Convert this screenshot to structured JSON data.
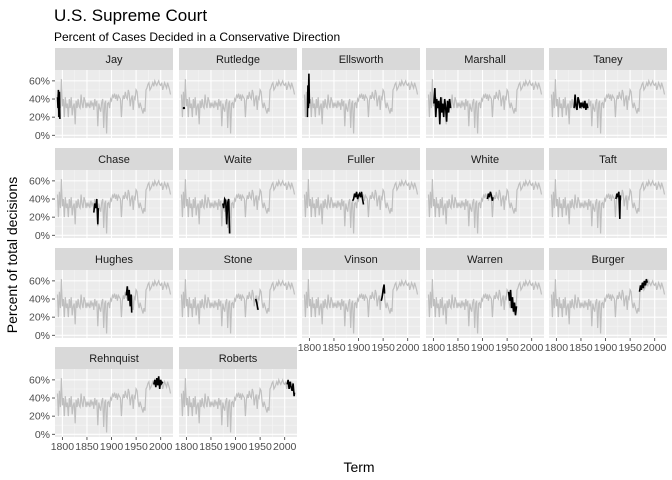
{
  "chart_data": {
    "type": "line",
    "title": "U.S. Supreme Court",
    "subtitle": "Percent of Cases Decided in a Conservative Direction",
    "xlabel": "Term",
    "ylabel": "Percent of total decisions",
    "xlim": [
      1785,
      2025
    ],
    "ylim": [
      -0.03,
      0.72
    ],
    "x_ticks": [
      1800,
      1850,
      1900,
      1950,
      2000
    ],
    "y_ticks": [
      0,
      0.2,
      0.4,
      0.6
    ],
    "y_tick_labels": [
      "0%",
      "20%",
      "40%",
      "60%"
    ],
    "background_series": {
      "x": [
        1790,
        1792,
        1794,
        1796,
        1798,
        1800,
        1802,
        1804,
        1806,
        1808,
        1810,
        1812,
        1814,
        1816,
        1818,
        1820,
        1822,
        1824,
        1826,
        1828,
        1830,
        1832,
        1834,
        1836,
        1838,
        1840,
        1842,
        1844,
        1846,
        1848,
        1850,
        1852,
        1854,
        1856,
        1858,
        1860,
        1862,
        1864,
        1866,
        1868,
        1870,
        1872,
        1874,
        1876,
        1878,
        1880,
        1882,
        1884,
        1886,
        1888,
        1890,
        1892,
        1894,
        1896,
        1898,
        1900,
        1902,
        1904,
        1906,
        1908,
        1910,
        1912,
        1914,
        1916,
        1918,
        1920,
        1922,
        1924,
        1926,
        1928,
        1930,
        1932,
        1934,
        1936,
        1938,
        1940,
        1942,
        1944,
        1946,
        1948,
        1950,
        1952,
        1954,
        1956,
        1958,
        1960,
        1962,
        1964,
        1966,
        1968,
        1970,
        1972,
        1974,
        1976,
        1978,
        1980,
        1982,
        1984,
        1986,
        1988,
        1990,
        1992,
        1994,
        1996,
        1998,
        2000,
        2002,
        2004,
        2006,
        2008,
        2010,
        2012,
        2014,
        2016,
        2018,
        2020
      ],
      "y": [
        0.45,
        0.2,
        0.48,
        0.3,
        0.62,
        0.32,
        0.4,
        0.2,
        0.42,
        0.3,
        0.35,
        0.2,
        0.4,
        0.3,
        0.42,
        0.22,
        0.32,
        0.35,
        0.12,
        0.38,
        0.3,
        0.4,
        0.32,
        0.3,
        0.45,
        0.35,
        0.3,
        0.42,
        0.38,
        0.3,
        0.36,
        0.32,
        0.35,
        0.3,
        0.38,
        0.33,
        0.36,
        0.28,
        0.4,
        0.32,
        0.38,
        0.1,
        0.35,
        0.3,
        0.26,
        0.36,
        0.4,
        0.08,
        0.35,
        0.38,
        0.02,
        0.35,
        0.36,
        0.3,
        0.4,
        0.38,
        0.44,
        0.42,
        0.46,
        0.4,
        0.45,
        0.38,
        0.44,
        0.42,
        0.4,
        0.2,
        0.38,
        0.44,
        0.4,
        0.48,
        0.42,
        0.4,
        0.5,
        0.46,
        0.32,
        0.4,
        0.44,
        0.28,
        0.42,
        0.4,
        0.5,
        0.48,
        0.36,
        0.3,
        0.36,
        0.32,
        0.28,
        0.24,
        0.3,
        0.26,
        0.5,
        0.52,
        0.56,
        0.58,
        0.5,
        0.52,
        0.55,
        0.58,
        0.54,
        0.6,
        0.57,
        0.55,
        0.58,
        0.6,
        0.56,
        0.55,
        0.58,
        0.5,
        0.54,
        0.58,
        0.55,
        0.52,
        0.58,
        0.54,
        0.5,
        0.45
      ]
    },
    "panels": [
      {
        "name": "Jay",
        "x": [
          1790,
          1791,
          1792,
          1793,
          1794,
          1795
        ],
        "y": [
          0.42,
          0.3,
          0.5,
          0.2,
          0.48,
          0.18
        ]
      },
      {
        "name": "Rutledge",
        "x": [
          1795
        ],
        "y": [
          0.3
        ]
      },
      {
        "name": "Ellsworth",
        "x": [
          1796,
          1797,
          1798,
          1799,
          1800
        ],
        "y": [
          0.2,
          0.55,
          0.3,
          0.68,
          0.35
        ]
      },
      {
        "name": "Marshall",
        "x": [
          1801,
          1803,
          1805,
          1807,
          1809,
          1811,
          1813,
          1815,
          1817,
          1819,
          1821,
          1823,
          1825,
          1827,
          1829,
          1831,
          1833,
          1835
        ],
        "y": [
          0.35,
          0.52,
          0.2,
          0.4,
          0.3,
          0.38,
          0.12,
          0.42,
          0.25,
          0.35,
          0.2,
          0.4,
          0.3,
          0.15,
          0.38,
          0.25,
          0.4,
          0.3
        ]
      },
      {
        "name": "Taney",
        "x": [
          1836,
          1838,
          1840,
          1842,
          1844,
          1846,
          1848,
          1850,
          1852,
          1854,
          1856,
          1858,
          1860,
          1862,
          1864
        ],
        "y": [
          0.3,
          0.45,
          0.32,
          0.28,
          0.42,
          0.38,
          0.3,
          0.36,
          0.32,
          0.35,
          0.3,
          0.38,
          0.28,
          0.35,
          0.3
        ]
      },
      {
        "name": "Chase",
        "x": [
          1864,
          1866,
          1868,
          1870,
          1872,
          1873
        ],
        "y": [
          0.25,
          0.35,
          0.3,
          0.4,
          0.12,
          0.3
        ]
      },
      {
        "name": "Waite",
        "x": [
          1874,
          1876,
          1878,
          1880,
          1882,
          1884,
          1886,
          1888
        ],
        "y": [
          0.35,
          0.3,
          0.4,
          0.38,
          0.12,
          0.36,
          0.4,
          0.02
        ]
      },
      {
        "name": "Fuller",
        "x": [
          1888,
          1890,
          1892,
          1894,
          1896,
          1898,
          1900,
          1902,
          1904,
          1906,
          1908,
          1910
        ],
        "y": [
          0.38,
          0.4,
          0.46,
          0.42,
          0.48,
          0.4,
          0.44,
          0.46,
          0.42,
          0.48,
          0.4,
          0.34
        ]
      },
      {
        "name": "White",
        "x": [
          1910,
          1912,
          1914,
          1916,
          1918,
          1920,
          1921
        ],
        "y": [
          0.4,
          0.46,
          0.42,
          0.48,
          0.44,
          0.38,
          0.42
        ]
      },
      {
        "name": "Taft",
        "x": [
          1921,
          1923,
          1925,
          1927,
          1929,
          1930
        ],
        "y": [
          0.4,
          0.46,
          0.42,
          0.48,
          0.18,
          0.44
        ]
      },
      {
        "name": "Hughes",
        "x": [
          1930,
          1932,
          1934,
          1936,
          1938,
          1940,
          1941
        ],
        "y": [
          0.44,
          0.54,
          0.38,
          0.5,
          0.32,
          0.45,
          0.25
        ]
      },
      {
        "name": "Stone",
        "x": [
          1941,
          1943,
          1945,
          1946
        ],
        "y": [
          0.4,
          0.36,
          0.3,
          0.28
        ]
      },
      {
        "name": "Vinson",
        "x": [
          1946,
          1948,
          1950,
          1952,
          1953
        ],
        "y": [
          0.38,
          0.42,
          0.5,
          0.56,
          0.46
        ]
      },
      {
        "name": "Warren",
        "x": [
          1953,
          1955,
          1957,
          1959,
          1961,
          1963,
          1965,
          1967,
          1969
        ],
        "y": [
          0.48,
          0.38,
          0.5,
          0.3,
          0.42,
          0.26,
          0.36,
          0.22,
          0.32
        ]
      },
      {
        "name": "Burger",
        "x": [
          1969,
          1971,
          1973,
          1975,
          1977,
          1979,
          1981,
          1983,
          1985
        ],
        "y": [
          0.48,
          0.55,
          0.5,
          0.58,
          0.52,
          0.6,
          0.55,
          0.62,
          0.58
        ]
      },
      {
        "name": "Rehnquist",
        "x": [
          1986,
          1988,
          1990,
          1992,
          1994,
          1996,
          1998,
          2000,
          2002,
          2004
        ],
        "y": [
          0.55,
          0.6,
          0.52,
          0.62,
          0.54,
          0.64,
          0.5,
          0.6,
          0.56,
          0.58
        ]
      },
      {
        "name": "Roberts",
        "x": [
          2005,
          2007,
          2009,
          2011,
          2013,
          2015,
          2017,
          2019,
          2020
        ],
        "y": [
          0.55,
          0.6,
          0.5,
          0.58,
          0.52,
          0.48,
          0.56,
          0.42,
          0.46
        ]
      }
    ]
  }
}
